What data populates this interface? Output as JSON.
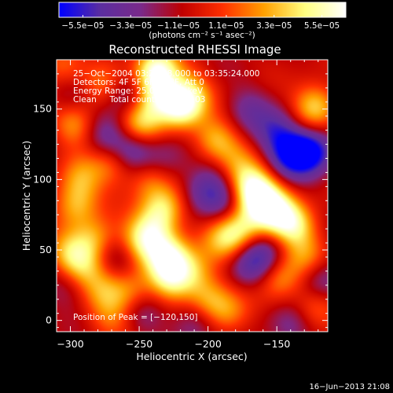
{
  "chart_data": {
    "type": "heatmap",
    "title": "Reconstructed RHESSI Image",
    "xlabel": "Heliocentric X (arcsec)",
    "ylabel": "Heliocentric Y (arcsec)",
    "xlim": [
      -310,
      -113
    ],
    "ylim": [
      -8,
      185
    ],
    "x_ticks": [
      -300,
      -250,
      -200,
      -150
    ],
    "x_tick_labels": [
      "−300",
      "−250",
      "−200",
      "−150"
    ],
    "y_ticks": [
      0,
      50,
      100,
      150
    ],
    "y_tick_labels": [
      "0",
      "50",
      "100",
      "150"
    ],
    "colorbar": {
      "min": -5.5e-05,
      "max": 5.5e-05,
      "tick_labels": [
        "−5.5e−05",
        "−3.3e−05",
        "−1.1e−05",
        "1.1e−05",
        "3.3e−05",
        "5.5e−05"
      ],
      "units": "(photons cm⁻² s⁻¹ asec⁻²)",
      "colors": [
        "#0000ff",
        "#5b2ea0",
        "#7a2a8a",
        "#c00000",
        "#ff3000",
        "#ffa000",
        "#ffff80",
        "#ffffff"
      ]
    },
    "annotations": [
      "25−Oct−2004 03:29:48.000 to 03:35:24.000",
      "Detectors: 4F 5F 6F 7F 8F, Att 0",
      "Energy Range: 25.0 − 50.0 keV",
      "Clean     Total counts: 3.62E+03"
    ],
    "peak_label": "Position of Peak = [−120,150]",
    "peak_position": [
      -120,
      150
    ],
    "sources": [
      {
        "x": -237,
        "y": 178,
        "v": 1.0
      },
      {
        "x": -220,
        "y": 152,
        "v": 0.95
      },
      {
        "x": -238,
        "y": 160,
        "v": 0.7
      },
      {
        "x": -122,
        "y": 152,
        "v": 0.75
      },
      {
        "x": -212,
        "y": 162,
        "v": 0.45
      },
      {
        "x": -250,
        "y": 140,
        "v": 0.7
      },
      {
        "x": -297,
        "y": 140,
        "v": 0.55
      },
      {
        "x": -305,
        "y": 182,
        "v": 0.45
      },
      {
        "x": -278,
        "y": 167,
        "v": 0.4
      },
      {
        "x": -293,
        "y": 101,
        "v": 0.5
      },
      {
        "x": -296,
        "y": 82,
        "v": 0.55
      },
      {
        "x": -270,
        "y": 112,
        "v": 0.45
      },
      {
        "x": -243,
        "y": 101,
        "v": 0.4
      },
      {
        "x": -195,
        "y": 128,
        "v": 0.6
      },
      {
        "x": -183,
        "y": 112,
        "v": 0.5
      },
      {
        "x": -170,
        "y": 98,
        "v": 0.55
      },
      {
        "x": -164,
        "y": 88,
        "v": 0.85
      },
      {
        "x": -152,
        "y": 78,
        "v": 0.9
      },
      {
        "x": -137,
        "y": 67,
        "v": 0.75
      },
      {
        "x": -175,
        "y": 65,
        "v": 0.6
      },
      {
        "x": -188,
        "y": 57,
        "v": 0.55
      },
      {
        "x": -232,
        "y": 80,
        "v": 0.65
      },
      {
        "x": -240,
        "y": 65,
        "v": 0.55
      },
      {
        "x": -250,
        "y": 55,
        "v": 0.6
      },
      {
        "x": -282,
        "y": 57,
        "v": 0.55
      },
      {
        "x": -300,
        "y": 47,
        "v": 0.6
      },
      {
        "x": -290,
        "y": 35,
        "v": 0.5
      },
      {
        "x": -229,
        "y": 45,
        "v": 0.9
      },
      {
        "x": -227,
        "y": 28,
        "v": 0.65
      },
      {
        "x": -256,
        "y": 20,
        "v": 0.45
      },
      {
        "x": -275,
        "y": 20,
        "v": 0.4
      },
      {
        "x": -200,
        "y": 15,
        "v": 0.5
      },
      {
        "x": -185,
        "y": 5,
        "v": 0.45
      },
      {
        "x": -210,
        "y": 35,
        "v": 0.5
      },
      {
        "x": -148,
        "y": 30,
        "v": 0.5
      },
      {
        "x": -122,
        "y": 10,
        "v": 0.45
      },
      {
        "x": -128,
        "y": 45,
        "v": 0.45
      },
      {
        "x": -270,
        "y": 2,
        "v": 0.35
      },
      {
        "x": -125,
        "y": 120,
        "v": -0.9
      },
      {
        "x": -140,
        "y": 118,
        "v": -0.75
      },
      {
        "x": -150,
        "y": 135,
        "v": -0.5
      },
      {
        "x": -255,
        "y": 121,
        "v": -0.55
      },
      {
        "x": -275,
        "y": 130,
        "v": -0.45
      },
      {
        "x": -258,
        "y": 160,
        "v": -0.45
      },
      {
        "x": -205,
        "y": 92,
        "v": -0.4
      },
      {
        "x": -190,
        "y": 85,
        "v": -0.4
      },
      {
        "x": -160,
        "y": 47,
        "v": -0.45
      },
      {
        "x": -170,
        "y": 38,
        "v": -0.45
      },
      {
        "x": -118,
        "y": 28,
        "v": -0.5
      },
      {
        "x": -210,
        "y": -2,
        "v": -0.4
      },
      {
        "x": -170,
        "y": 150,
        "v": -0.35
      },
      {
        "x": -190,
        "y": 108,
        "v": -0.35
      },
      {
        "x": -265,
        "y": 45,
        "v": -0.35
      },
      {
        "x": -300,
        "y": 160,
        "v": -0.3
      },
      {
        "x": -300,
        "y": 25,
        "v": -0.3
      },
      {
        "x": -248,
        "y": 5,
        "v": -0.3
      },
      {
        "x": -140,
        "y": -5,
        "v": -0.35
      },
      {
        "x": -232,
        "y": 115,
        "v": -0.3
      }
    ]
  },
  "footer": {
    "timestamp": "16−Jun−2013 21:08"
  }
}
